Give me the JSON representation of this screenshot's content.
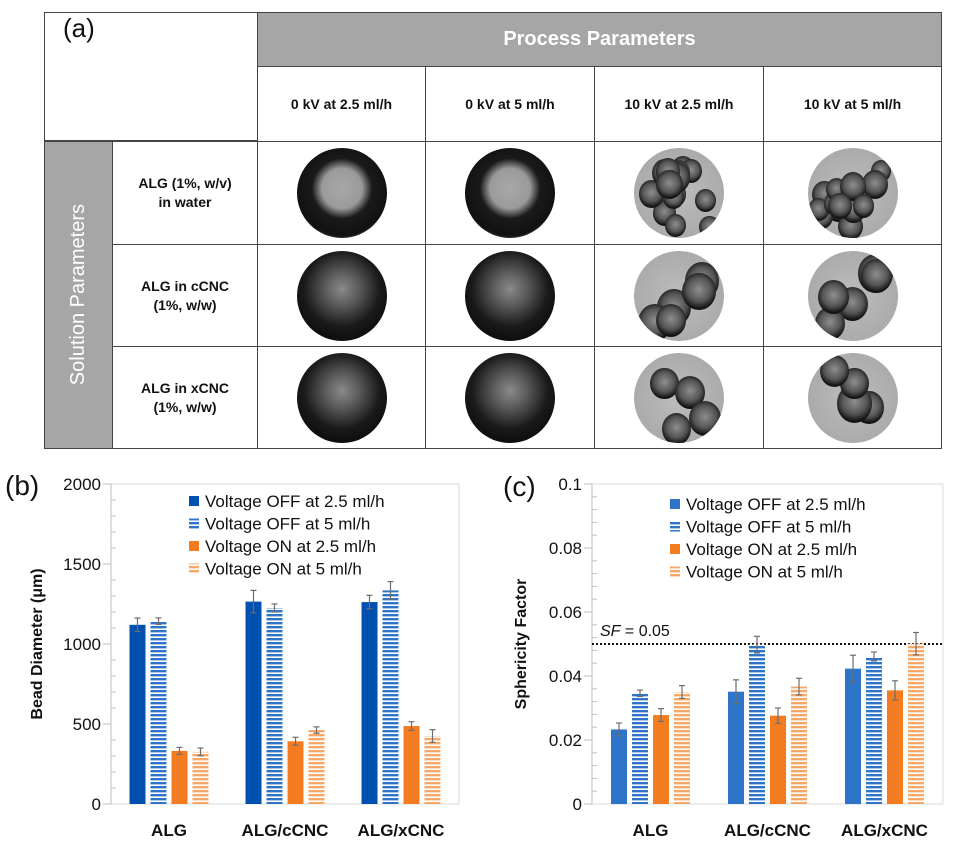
{
  "panel_a": {
    "label": "(a)",
    "process_header": "Process Parameters",
    "solution_header": "Solution Parameters",
    "columns": [
      "0 kV at 2.5 ml/h",
      "0 kV at 5 ml/h",
      "10 kV at 2.5 ml/h",
      "10 kV at 5 ml/h"
    ],
    "rows": [
      {
        "line1": "ALG (1%, w/v)",
        "line2": "in water"
      },
      {
        "line1": "ALG in cCNC",
        "line2": "(1%, w/w)"
      },
      {
        "line1": "ALG in xCNC",
        "line2": "(1%, w/w)"
      }
    ]
  },
  "colors": {
    "off_solid": "#0050b0",
    "off_striped": "#2e75c9",
    "on_solid": "#f47c20",
    "on_striped": "#f7a766",
    "header_gray": "#a6a6a6"
  },
  "chart_data": [
    {
      "type": "bar",
      "panel_label": "(b)",
      "title": "",
      "xlabel": "",
      "ylabel": "Bead Diameter (μm)",
      "ylim": [
        0,
        2000
      ],
      "yticks": [
        "0",
        "500",
        "1000",
        "1500",
        "2000"
      ],
      "categories": [
        "ALG",
        "ALG/cCNC",
        "ALG/xCNC"
      ],
      "legend_position": "top-right",
      "series": [
        {
          "name": "Voltage OFF at 2.5 ml/h",
          "pattern": "solid",
          "color": "off_solid",
          "values": [
            1120,
            1265,
            1262
          ],
          "errors": [
            42,
            70,
            42
          ]
        },
        {
          "name": "Voltage OFF at 5 ml/h",
          "pattern": "striped",
          "color": "off_striped",
          "values": [
            1143,
            1225,
            1335
          ],
          "errors": [
            20,
            25,
            55
          ]
        },
        {
          "name": "Voltage ON at 2.5 ml/h",
          "pattern": "solid",
          "color": "on_solid",
          "values": [
            332,
            392,
            487
          ],
          "errors": [
            22,
            25,
            27
          ]
        },
        {
          "name": "Voltage ON at 5 ml/h",
          "pattern": "striped",
          "color": "on_striped",
          "values": [
            326,
            462,
            425
          ],
          "errors": [
            24,
            20,
            40
          ]
        }
      ]
    },
    {
      "type": "bar",
      "panel_label": "(c)",
      "title": "",
      "xlabel": "",
      "ylabel": "Sphericity Factor",
      "ylim": [
        0,
        0.1
      ],
      "yticks": [
        "0",
        "0.02",
        "0.04",
        "0.06",
        "0.08",
        "0.1"
      ],
      "categories": [
        "ALG",
        "ALG/cCNC",
        "ALG/xCNC"
      ],
      "legend_position": "top-right",
      "reference_line": {
        "value": 0.05,
        "label_italic": "SF",
        "label_rest": " = 0.05",
        "style": "dotted"
      },
      "series": [
        {
          "name": "Voltage OFF at 2.5 ml/h",
          "pattern": "solid",
          "color": "off_striped",
          "values": [
            0.0233,
            0.0351,
            0.0423
          ],
          "errors": [
            0.002,
            0.0037,
            0.0042
          ]
        },
        {
          "name": "Voltage OFF at 5 ml/h",
          "pattern": "striped",
          "color": "off_striped",
          "values": [
            0.0346,
            0.0498,
            0.0461
          ],
          "errors": [
            0.001,
            0.0026,
            0.0014
          ]
        },
        {
          "name": "Voltage ON at 2.5 ml/h",
          "pattern": "solid",
          "color": "on_solid",
          "values": [
            0.0278,
            0.0276,
            0.0355
          ],
          "errors": [
            0.002,
            0.0024,
            0.003
          ]
        },
        {
          "name": "Voltage ON at 5 ml/h",
          "pattern": "striped",
          "color": "on_striped",
          "values": [
            0.035,
            0.0367,
            0.0501
          ],
          "errors": [
            0.002,
            0.0026,
            0.0035
          ]
        }
      ]
    }
  ]
}
